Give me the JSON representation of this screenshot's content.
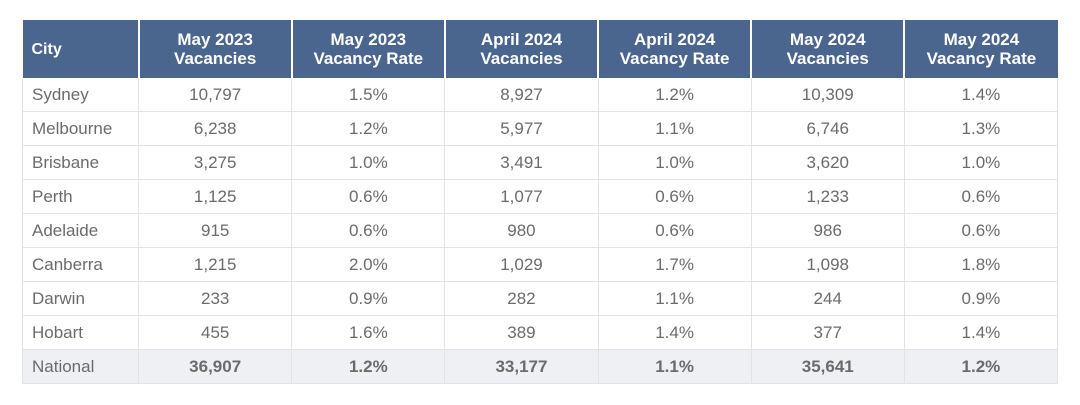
{
  "headers": [
    {
      "line1": "City",
      "line2": ""
    },
    {
      "line1": "May 2023",
      "line2": "Vacancies"
    },
    {
      "line1": "May 2023",
      "line2": "Vacancy Rate"
    },
    {
      "line1": "April 2024",
      "line2": "Vacancies"
    },
    {
      "line1": "April 2024",
      "line2": "Vacancy Rate"
    },
    {
      "line1": "May 2024",
      "line2": "Vacancies"
    },
    {
      "line1": "May 2024",
      "line2": "Vacancy Rate"
    }
  ],
  "rows": [
    {
      "city": "Sydney",
      "may23_vac": "10,797",
      "may23_rate": "1.5%",
      "apr24_vac": "8,927",
      "apr24_rate": "1.2%",
      "may24_vac": "10,309",
      "may24_rate": "1.4%"
    },
    {
      "city": "Melbourne",
      "may23_vac": "6,238",
      "may23_rate": "1.2%",
      "apr24_vac": "5,977",
      "apr24_rate": "1.1%",
      "may24_vac": "6,746",
      "may24_rate": "1.3%"
    },
    {
      "city": "Brisbane",
      "may23_vac": "3,275",
      "may23_rate": "1.0%",
      "apr24_vac": "3,491",
      "apr24_rate": "1.0%",
      "may24_vac": "3,620",
      "may24_rate": "1.0%"
    },
    {
      "city": "Perth",
      "may23_vac": "1,125",
      "may23_rate": "0.6%",
      "apr24_vac": "1,077",
      "apr24_rate": "0.6%",
      "may24_vac": "1,233",
      "may24_rate": "0.6%"
    },
    {
      "city": "Adelaide",
      "may23_vac": "915",
      "may23_rate": "0.6%",
      "apr24_vac": "980",
      "apr24_rate": "0.6%",
      "may24_vac": "986",
      "may24_rate": "0.6%"
    },
    {
      "city": "Canberra",
      "may23_vac": "1,215",
      "may23_rate": "2.0%",
      "apr24_vac": "1,029",
      "apr24_rate": "1.7%",
      "may24_vac": "1,098",
      "may24_rate": "1.8%"
    },
    {
      "city": "Darwin",
      "may23_vac": "233",
      "may23_rate": "0.9%",
      "apr24_vac": "282",
      "apr24_rate": "1.1%",
      "may24_vac": "244",
      "may24_rate": "0.9%"
    },
    {
      "city": "Hobart",
      "may23_vac": "455",
      "may23_rate": "1.6%",
      "apr24_vac": "389",
      "apr24_rate": "1.4%",
      "may24_vac": "377",
      "may24_rate": "1.4%"
    },
    {
      "city": "National",
      "may23_vac": "36,907",
      "may23_rate": "1.2%",
      "apr24_vac": "33,177",
      "apr24_rate": "1.1%",
      "may24_vac": "35,641",
      "may24_rate": "1.2%"
    }
  ],
  "colors": {
    "header_bg": "#4a668f",
    "header_text": "#ffffff",
    "body_text": "#6b6b6b",
    "grid_line": "#e3e3e3",
    "total_row_bg": "#eef0f3"
  }
}
